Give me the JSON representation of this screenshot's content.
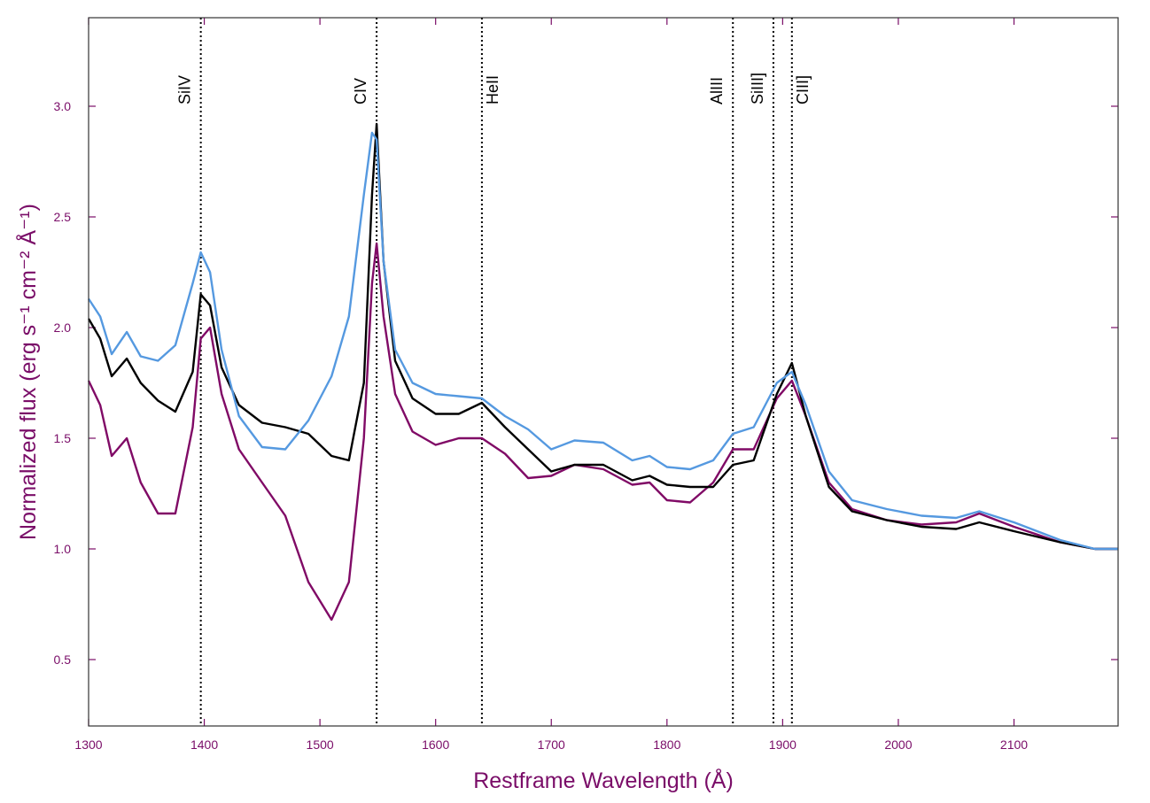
{
  "chart_data": {
    "type": "line",
    "xlabel": "Restframe Wavelength (Å)",
    "ylabel": "Normalized flux (erg s⁻¹ cm⁻² Å⁻¹)",
    "xlim": [
      1300,
      2190
    ],
    "ylim": [
      0.2,
      3.4
    ],
    "xticks": [
      1300,
      1400,
      1500,
      1600,
      1700,
      1800,
      1900,
      2000,
      2100
    ],
    "yticks": [
      0.5,
      {
        "value": 1.0,
        "label": "1.0"
      },
      1.5,
      {
        "value": 2.0,
        "label": "2.0"
      },
      2.5,
      {
        "value": 3.0,
        "label": "3.0"
      }
    ],
    "x": [
      1300,
      1310,
      1320,
      1333,
      1345,
      1360,
      1375,
      1390,
      1397,
      1405,
      1415,
      1430,
      1450,
      1470,
      1490,
      1510,
      1525,
      1538,
      1545,
      1549,
      1555,
      1565,
      1580,
      1600,
      1620,
      1640,
      1660,
      1680,
      1700,
      1720,
      1745,
      1770,
      1785,
      1800,
      1820,
      1840,
      1857,
      1875,
      1895,
      1908,
      1920,
      1940,
      1960,
      1990,
      2020,
      2050,
      2070,
      2100,
      2140,
      2170,
      2190
    ],
    "series": [
      {
        "color": "#800a66",
        "values": [
          1.76,
          1.65,
          1.42,
          1.5,
          1.3,
          1.16,
          1.16,
          1.55,
          1.95,
          2.0,
          1.7,
          1.45,
          1.3,
          1.15,
          0.85,
          0.68,
          0.85,
          1.5,
          2.2,
          2.38,
          2.05,
          1.7,
          1.53,
          1.47,
          1.5,
          1.5,
          1.43,
          1.32,
          1.33,
          1.38,
          1.36,
          1.29,
          1.3,
          1.22,
          1.21,
          1.3,
          1.45,
          1.45,
          1.68,
          1.76,
          1.6,
          1.3,
          1.18,
          1.13,
          1.11,
          1.12,
          1.16,
          1.1,
          1.03,
          1.0,
          1.0
        ]
      },
      {
        "color": "#000000",
        "values": [
          2.04,
          1.95,
          1.78,
          1.86,
          1.75,
          1.67,
          1.62,
          1.8,
          2.15,
          2.1,
          1.82,
          1.65,
          1.57,
          1.55,
          1.52,
          1.42,
          1.4,
          1.75,
          2.6,
          2.92,
          2.3,
          1.85,
          1.68,
          1.61,
          1.61,
          1.66,
          1.55,
          1.45,
          1.35,
          1.38,
          1.38,
          1.31,
          1.33,
          1.29,
          1.28,
          1.28,
          1.38,
          1.4,
          1.7,
          1.84,
          1.6,
          1.28,
          1.17,
          1.13,
          1.1,
          1.09,
          1.12,
          1.08,
          1.03,
          1.0,
          1.0
        ]
      },
      {
        "color": "#5599e0",
        "values": [
          2.13,
          2.05,
          1.88,
          1.98,
          1.87,
          1.85,
          1.92,
          2.2,
          2.34,
          2.25,
          1.9,
          1.6,
          1.46,
          1.45,
          1.58,
          1.78,
          2.05,
          2.6,
          2.88,
          2.85,
          2.3,
          1.9,
          1.75,
          1.7,
          1.69,
          1.68,
          1.6,
          1.54,
          1.45,
          1.49,
          1.48,
          1.4,
          1.42,
          1.37,
          1.36,
          1.4,
          1.52,
          1.55,
          1.75,
          1.8,
          1.65,
          1.35,
          1.22,
          1.18,
          1.15,
          1.14,
          1.17,
          1.12,
          1.04,
          1.0,
          1.0
        ]
      }
    ],
    "annotations": [
      {
        "x": 1397,
        "label": "SiIV"
      },
      {
        "x": 1549,
        "label": "CIV"
      },
      {
        "x": 1640,
        "label": "HeII"
      },
      {
        "x": 1857,
        "label": "AlIII"
      },
      {
        "x": 1892,
        "label": "SiIII]"
      },
      {
        "x": 1908,
        "label": "CIII]"
      }
    ]
  }
}
